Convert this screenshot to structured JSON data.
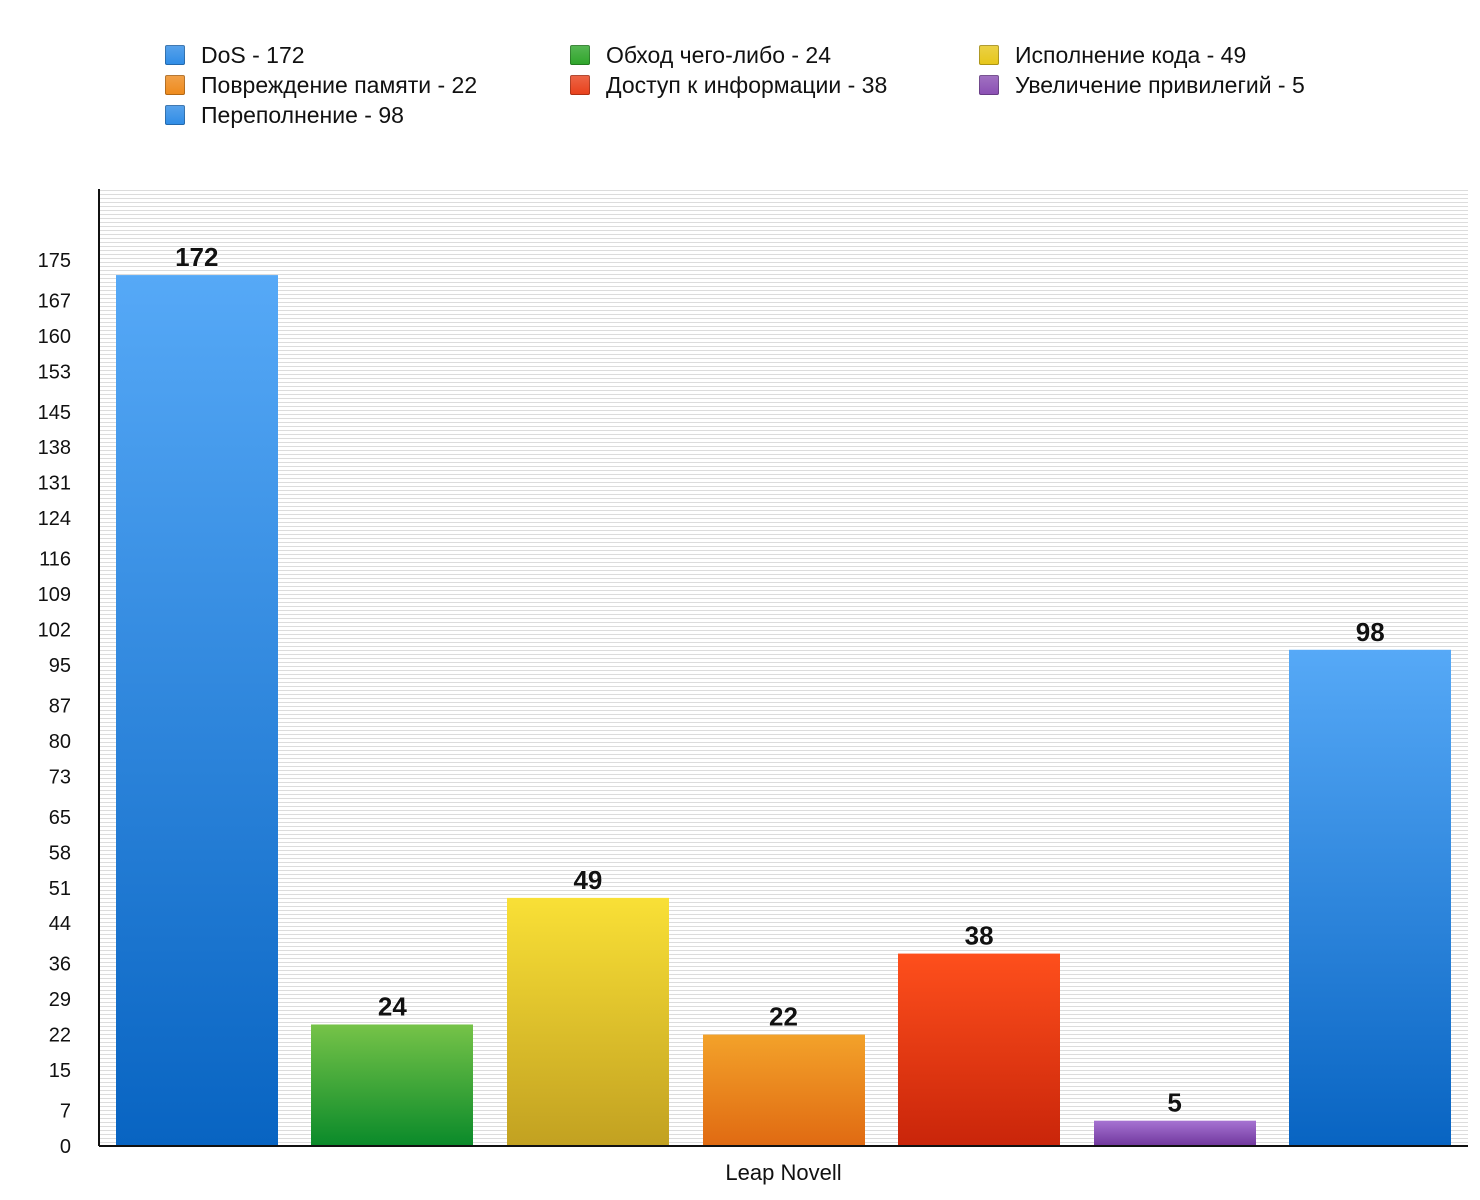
{
  "legend": [
    {
      "label": "DoS - 172",
      "color": "#2f8ce6"
    },
    {
      "label": "Обход чего-либо - 24",
      "color": "#2ea52a"
    },
    {
      "label": "Исполнение кода - 49",
      "color": "#e6c619"
    },
    {
      "label": "Повреждение памяти - 22",
      "color": "#ee8a1c"
    },
    {
      "label": "Доступ к информации - 38",
      "color": "#e8401a"
    },
    {
      "label": "Увеличение привилегий - 5",
      "color": "#8a4fb3"
    },
    {
      "label": "Переполнение - 98",
      "color": "#2f8ce6"
    }
  ],
  "chart_data": {
    "type": "bar",
    "xlabel": "Leap Novell",
    "ylabel": "",
    "title": "",
    "ylim": [
      0,
      189
    ],
    "yticks": [
      "0",
      "7",
      "15",
      "22",
      "29",
      "36",
      "44",
      "51",
      "58",
      "65",
      "73",
      "80",
      "87",
      "95",
      "102",
      "109",
      "116",
      "124",
      "131",
      "138",
      "145",
      "153",
      "160",
      "167",
      "175"
    ],
    "grid": true,
    "series": [
      {
        "name": "DoS",
        "values": [
          172
        ],
        "label": "172",
        "colors": [
          "#56a9f7",
          "#0864c2"
        ]
      },
      {
        "name": "Обход чего-либо",
        "values": [
          24
        ],
        "label": "24",
        "colors": [
          "#76c348",
          "#0a8a2a"
        ]
      },
      {
        "name": "Исполнение кода",
        "values": [
          49
        ],
        "label": "49",
        "colors": [
          "#f9e036",
          "#c2a121"
        ]
      },
      {
        "name": "Повреждение памяти",
        "values": [
          22
        ],
        "label": "22",
        "colors": [
          "#f3a22a",
          "#e06a12"
        ]
      },
      {
        "name": "Доступ к информации",
        "values": [
          38
        ],
        "label": "38",
        "colors": [
          "#fe4f1c",
          "#c9250a"
        ]
      },
      {
        "name": "Увеличение привилегий",
        "values": [
          5
        ],
        "label": "5",
        "colors": [
          "#a673d2",
          "#70379d"
        ]
      },
      {
        "name": "Переполнение",
        "values": [
          98
        ],
        "label": "98",
        "colors": [
          "#56a9f7",
          "#0864c2"
        ]
      }
    ]
  }
}
